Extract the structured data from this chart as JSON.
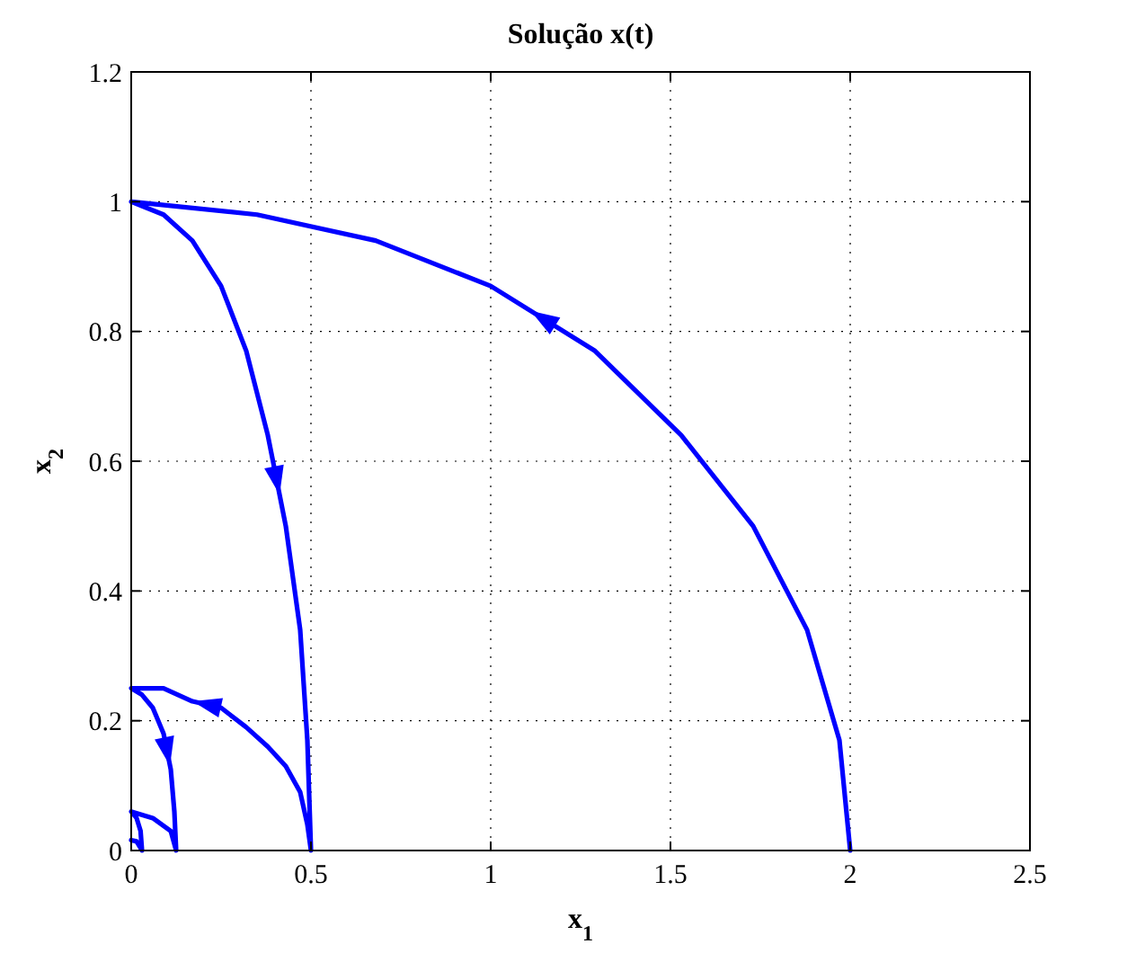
{
  "chart_data": {
    "type": "line",
    "title": "Solução x(t)",
    "xlabel": "x$_{1}$",
    "ylabel": "x$_{2}$",
    "xlim": [
      0,
      2.5
    ],
    "xticks": [
      0,
      0.5,
      1,
      1.5,
      2,
      2.5
    ],
    "ylim": [
      0,
      1.2
    ],
    "yticks": [
      0,
      0.2,
      0.4,
      0.6,
      0.8,
      1,
      1.2
    ],
    "grid": true,
    "marker": "none",
    "line_style": "solid",
    "series": [
      {
        "color": "#0000ff",
        "x": [
          2,
          1.97,
          1.88,
          1.73,
          1.53,
          1.29,
          1,
          0.68,
          0.35,
          0,
          0.09,
          0.17,
          0.25,
          0.32,
          0.38,
          0.43,
          0.47,
          0.49,
          0.5,
          0.49,
          0.47,
          0.43,
          0.38,
          0.32,
          0.25,
          0.17,
          0.09,
          0,
          0.03,
          0.06,
          0.09,
          0.11,
          0.12,
          0.125,
          0.11,
          0.06,
          0,
          0.015,
          0.026,
          0.03,
          0.015,
          0
        ],
        "values": [
          0,
          0.17,
          0.34,
          0.5,
          0.64,
          0.77,
          0.87,
          0.94,
          0.98,
          1,
          0.98,
          0.94,
          0.87,
          0.77,
          0.64,
          0.5,
          0.34,
          0.17,
          0,
          0.04,
          0.09,
          0.13,
          0.16,
          0.19,
          0.22,
          0.23,
          0.25,
          0.25,
          0.24,
          0.22,
          0.18,
          0.125,
          0.06,
          0,
          0.03,
          0.05,
          0.06,
          0.05,
          0.03,
          0,
          0.014,
          0.016
        ]
      }
    ]
  }
}
